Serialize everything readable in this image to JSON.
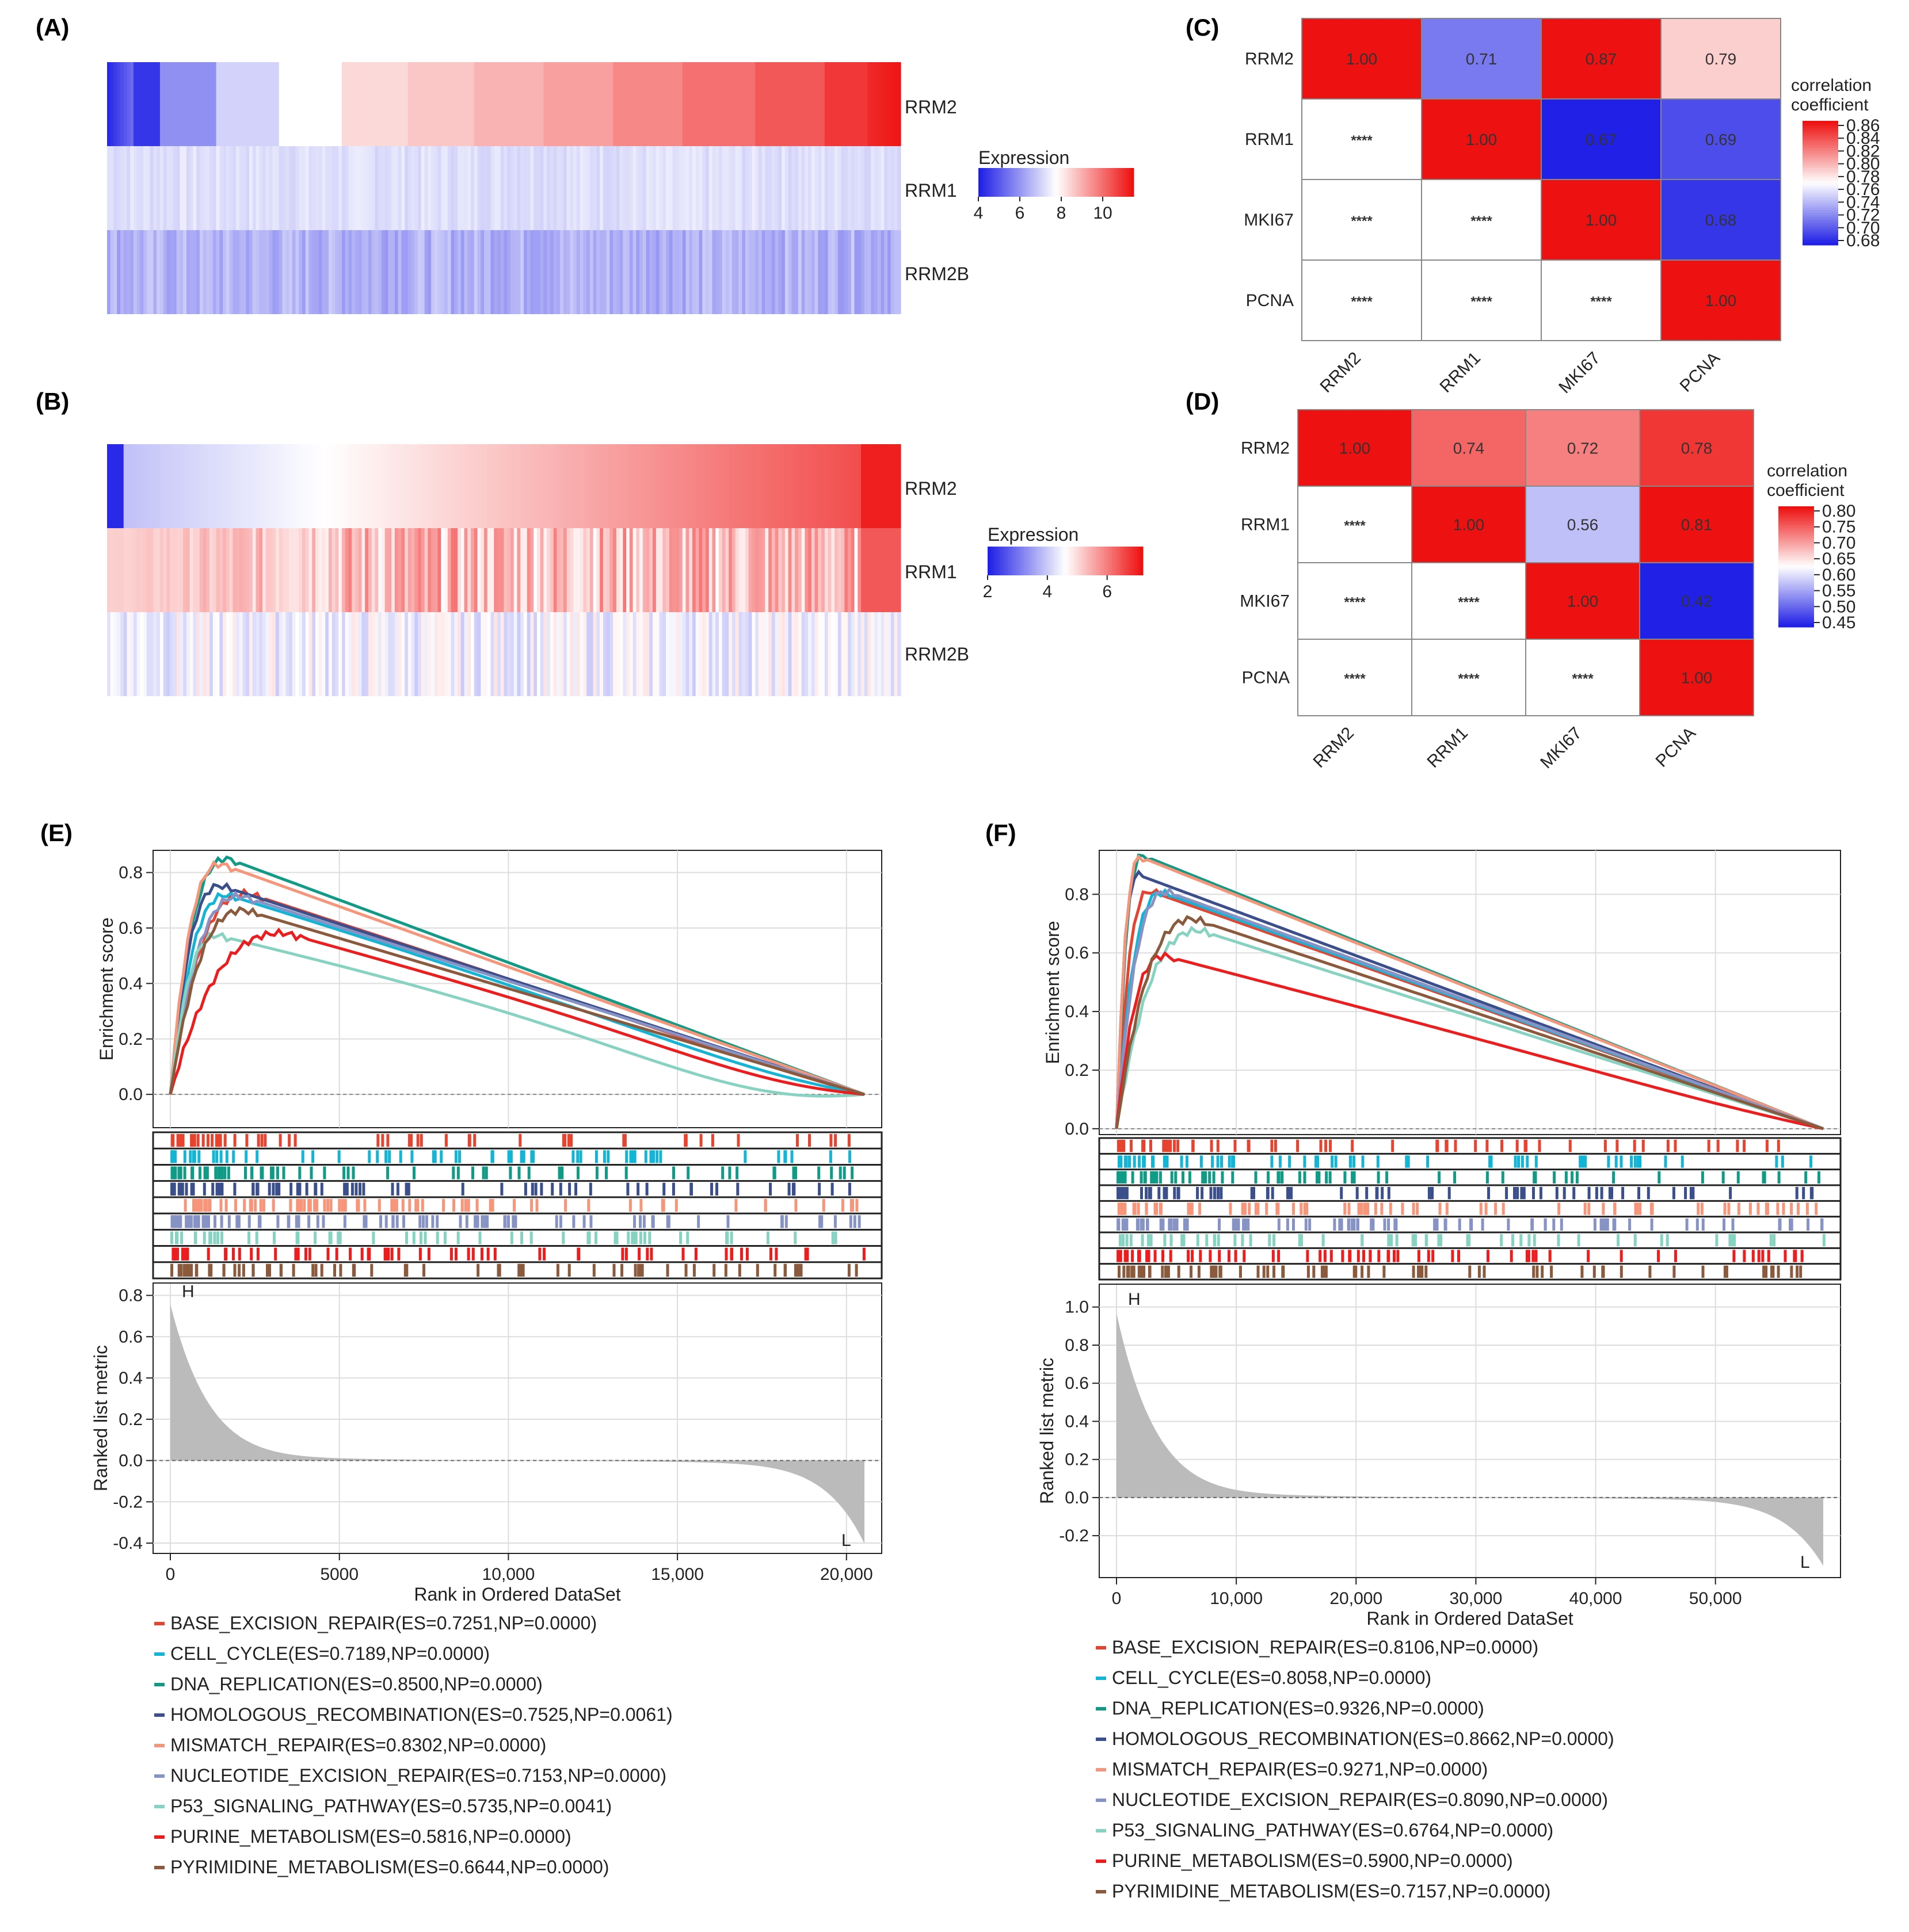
{
  "colors": {
    "low": "#2020e6",
    "mid": "#ffffff",
    "high": "#ee1111",
    "grid": "#dddddd",
    "band": "#bbbbbb"
  },
  "panel_labels": {
    "A": "(A)",
    "B": "(B)",
    "C": "(C)",
    "D": "(D)",
    "E": "(E)",
    "F": "(F)"
  },
  "chart_data": [
    {
      "id": "A",
      "type": "heatmap",
      "rows": [
        "RRM2",
        "RRM1",
        "RRM2B"
      ],
      "colorbar": {
        "title": "Expression",
        "ticks": [
          4,
          6,
          8,
          10
        ],
        "range": [
          4,
          11.5
        ]
      },
      "description_values": {
        "RRM2_range": [
          4,
          11.5
        ],
        "RRM1_approx": 7,
        "RRM2B_approx": 6
      }
    },
    {
      "id": "B",
      "type": "heatmap",
      "rows": [
        "RRM2",
        "RRM1",
        "RRM2B"
      ],
      "colorbar": {
        "title": "Expression",
        "ticks": [
          2,
          4,
          6
        ],
        "range": [
          2,
          7.2
        ]
      },
      "description_values": {
        "RRM2_range": [
          2,
          7.2
        ],
        "RRM1_approx": 5.2,
        "RRM2B_approx": 4.3
      }
    },
    {
      "id": "C",
      "type": "heatmap",
      "genes": [
        "RRM2",
        "RRM1",
        "MKI67",
        "PCNA"
      ],
      "values": [
        [
          1.0,
          0.71,
          0.87,
          0.79
        ],
        [
          null,
          1.0,
          0.67,
          0.69
        ],
        [
          null,
          null,
          1.0,
          0.68
        ],
        [
          null,
          null,
          null,
          1.0
        ]
      ],
      "labels": [
        [
          "1.00",
          "0.71",
          "0.87",
          "0.79"
        ],
        [
          "****",
          "1.00",
          "0.67",
          "0.69"
        ],
        [
          "****",
          "****",
          "1.00",
          "0.68"
        ],
        [
          "****",
          "****",
          "****",
          "1.00"
        ]
      ],
      "colorbar": {
        "title": [
          "correlation",
          "coefficient"
        ],
        "ticks": [
          "0.86",
          "0.84",
          "0.82",
          "0.80",
          "0.78",
          "0.76",
          "0.74",
          "0.72",
          "0.70",
          "0.68"
        ],
        "range": [
          0.67,
          0.87
        ]
      }
    },
    {
      "id": "D",
      "type": "heatmap",
      "genes": [
        "RRM2",
        "RRM1",
        "MKI67",
        "PCNA"
      ],
      "values": [
        [
          1.0,
          0.74,
          0.72,
          0.78
        ],
        [
          null,
          1.0,
          0.56,
          0.81
        ],
        [
          null,
          null,
          1.0,
          0.42
        ],
        [
          null,
          null,
          null,
          1.0
        ]
      ],
      "labels": [
        [
          "1.00",
          "0.74",
          "0.72",
          "0.78"
        ],
        [
          "****",
          "1.00",
          "0.56",
          "0.81"
        ],
        [
          "****",
          "****",
          "1.00",
          "0.42"
        ],
        [
          "****",
          "****",
          "****",
          "1.00"
        ]
      ],
      "colorbar": {
        "title": [
          "correlation",
          "coefficient"
        ],
        "ticks": [
          "0.80",
          "0.75",
          "0.70",
          "0.65",
          "0.60",
          "0.55",
          "0.50",
          "0.45"
        ],
        "range": [
          0.42,
          0.81
        ]
      }
    },
    {
      "id": "E",
      "type": "line",
      "xlabel": "Rank in Ordered DataSet",
      "ylabel_top": "Enrichment score",
      "ylabel_bottom": "Ranked list metric",
      "xmax": 20531,
      "xticks": [
        0,
        5000,
        10000,
        15000,
        20000
      ],
      "xtick_labels": [
        "0",
        "5000",
        "10,000",
        "15,000",
        "20,000"
      ],
      "es_ylim": [
        -0.12,
        0.88
      ],
      "es_ticks": [
        "0.0",
        "0.2",
        "0.4",
        "0.6",
        "0.8"
      ],
      "rank_ylim": [
        -0.45,
        0.86
      ],
      "rank_ticks": [
        "-0.4",
        "-0.2",
        "0.0",
        "0.2",
        "0.4",
        "0.6",
        "0.8"
      ],
      "rank_top": 0.86,
      "rank_bottom": -0.45,
      "H": "H",
      "L": "L",
      "series": [
        {
          "name": "BASE_EXCISION_REPAIR(ES=0.7251,NP=0.0000)",
          "color": "#e8432f",
          "peak_x": 2300,
          "es": 0.7251,
          "end_min": -0.01
        },
        {
          "name": "CELL_CYCLE(ES=0.7189,NP=0.0000)",
          "color": "#13b5d6",
          "peak_x": 1700,
          "es": 0.7189,
          "end_min": -0.03
        },
        {
          "name": "DNA_REPLICATION(ES=0.8500,NP=0.0000)",
          "color": "#109b87",
          "peak_x": 1700,
          "es": 0.85,
          "end_min": 0.0
        },
        {
          "name": "HOMOLOGOUS_RECOMBINATION(ES=0.7525,NP=0.0061)",
          "color": "#3b4f8c",
          "peak_x": 1500,
          "es": 0.7525,
          "end_min": 0.0
        },
        {
          "name": "MISMATCH_REPAIR(ES=0.8302,NP=0.0000)",
          "color": "#f6957a",
          "peak_x": 1500,
          "es": 0.8302,
          "end_min": 0.0
        },
        {
          "name": "NUCLEOTIDE_EXCISION_REPAIR(ES=0.7153,NP=0.0000)",
          "color": "#8793c4",
          "peak_x": 2100,
          "es": 0.7153,
          "end_min": 0.0
        },
        {
          "name": "P53_SIGNALING_PATHWAY(ES=0.5735,NP=0.0041)",
          "color": "#86d3c2",
          "peak_x": 1400,
          "es": 0.5735,
          "end_min": -0.08
        },
        {
          "name": "PURINE_METABOLISM(ES=0.5816,NP=0.0000)",
          "color": "#ee1c1c",
          "peak_x": 3400,
          "es": 0.5816,
          "end_min": -0.04
        },
        {
          "name": "PYRIMIDINE_METABOLISM(ES=0.6644,NP=0.0000)",
          "color": "#8b5a3c",
          "peak_x": 2200,
          "es": 0.6644,
          "end_min": 0.0
        }
      ]
    },
    {
      "id": "F",
      "type": "line",
      "xlabel": "Rank in Ordered DataSet",
      "ylabel_top": "Enrichment score",
      "ylabel_bottom": "Ranked list metric",
      "xmax": 59000,
      "xticks": [
        0,
        10000,
        20000,
        30000,
        40000,
        50000
      ],
      "xtick_labels": [
        "0",
        "10,000",
        "20,000",
        "30,000",
        "40,000",
        "50,000"
      ],
      "es_ylim": [
        -0.02,
        0.95
      ],
      "es_ticks": [
        "0.0",
        "0.2",
        "0.4",
        "0.6",
        "0.8"
      ],
      "rank_ylim": [
        -0.42,
        1.12
      ],
      "rank_ticks": [
        "-0.2",
        "0.0",
        "0.2",
        "0.4",
        "0.6",
        "0.8",
        "1.0"
      ],
      "rank_top": 1.1,
      "rank_bottom": -0.4,
      "H": "H",
      "L": "L",
      "series": [
        {
          "name": "BASE_EXCISION_REPAIR(ES=0.8106,NP=0.0000)",
          "color": "#e8432f",
          "peak_x": 2800,
          "es": 0.8106,
          "end_min": 0.0
        },
        {
          "name": "CELL_CYCLE(ES=0.8058,NP=0.0000)",
          "color": "#13b5d6",
          "peak_x": 3800,
          "es": 0.8058,
          "end_min": 0.0
        },
        {
          "name": "DNA_REPLICATION(ES=0.9326,NP=0.0000)",
          "color": "#109b87",
          "peak_x": 2200,
          "es": 0.9326,
          "end_min": 0.0
        },
        {
          "name": "HOMOLOGOUS_RECOMBINATION(ES=0.8662,NP=0.0000)",
          "color": "#3b4f8c",
          "peak_x": 1800,
          "es": 0.8662,
          "end_min": 0.0
        },
        {
          "name": "MISMATCH_REPAIR(ES=0.9271,NP=0.0000)",
          "color": "#f6957a",
          "peak_x": 2000,
          "es": 0.9271,
          "end_min": 0.0
        },
        {
          "name": "NUCLEOTIDE_EXCISION_REPAIR(ES=0.8090,NP=0.0000)",
          "color": "#8793c4",
          "peak_x": 4200,
          "es": 0.809,
          "end_min": 0.0
        },
        {
          "name": "P53_SIGNALING_PATHWAY(ES=0.6764,NP=0.0000)",
          "color": "#86d3c2",
          "peak_x": 7000,
          "es": 0.6764,
          "end_min": 0.0
        },
        {
          "name": "PURINE_METABOLISM(ES=0.5900,NP=0.0000)",
          "color": "#ee1c1c",
          "peak_x": 4000,
          "es": 0.59,
          "end_min": -0.01
        },
        {
          "name": "PYRIMIDINE_METABOLISM(ES=0.7157,NP=0.0000)",
          "color": "#8b5a3c",
          "peak_x": 6500,
          "es": 0.7157,
          "end_min": 0.0
        }
      ]
    }
  ]
}
